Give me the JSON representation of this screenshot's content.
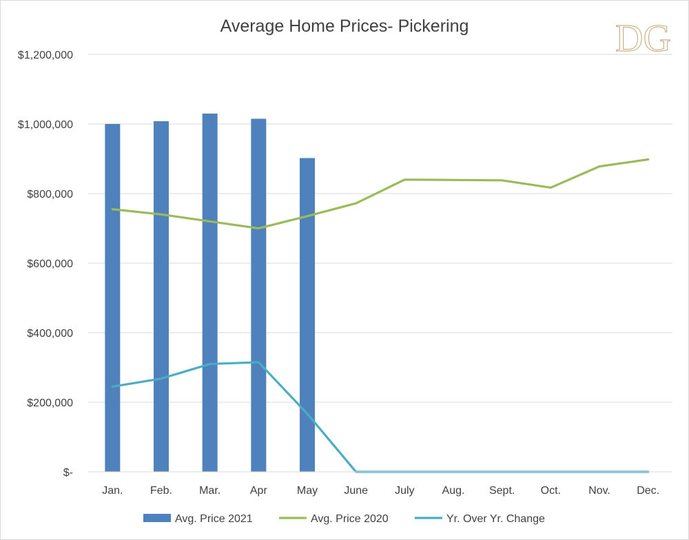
{
  "chart_data": {
    "type": "bar",
    "title": "Average Home Prices- Pickering",
    "categories": [
      "Jan.",
      "Feb.",
      "Mar.",
      "Apr",
      "May",
      "June",
      "July",
      "Aug.",
      "Sept.",
      "Oct.",
      "Nov.",
      "Dec."
    ],
    "ylim": [
      0,
      1200000
    ],
    "yticks": [
      0,
      200000,
      400000,
      600000,
      800000,
      1000000,
      1200000
    ],
    "ytick_labels": [
      "$-",
      "$200,000",
      "$400,000",
      "$600,000",
      "$800,000",
      "$1,000,000",
      "$1,200,000"
    ],
    "grid": true,
    "legend_position": "bottom",
    "series": [
      {
        "name": "Avg. Price 2021",
        "kind": "bar",
        "color": "#4f81bd",
        "values": [
          1000000,
          1008000,
          1030000,
          1015000,
          902000,
          null,
          null,
          null,
          null,
          null,
          null,
          null
        ]
      },
      {
        "name": "Avg. Price 2020",
        "kind": "line",
        "color": "#9bbb59",
        "values": [
          755000,
          740000,
          720000,
          700000,
          735000,
          772000,
          840000,
          839000,
          838000,
          817000,
          878000,
          898000
        ]
      },
      {
        "name": "Yr. Over Yr. Change",
        "kind": "line",
        "color": "#4bacc6",
        "values": [
          245000,
          268000,
          310000,
          315000,
          167000,
          0,
          0,
          0,
          0,
          0,
          0,
          0
        ]
      }
    ]
  },
  "logo": {
    "text": "DG",
    "color": "#c9b48a"
  }
}
